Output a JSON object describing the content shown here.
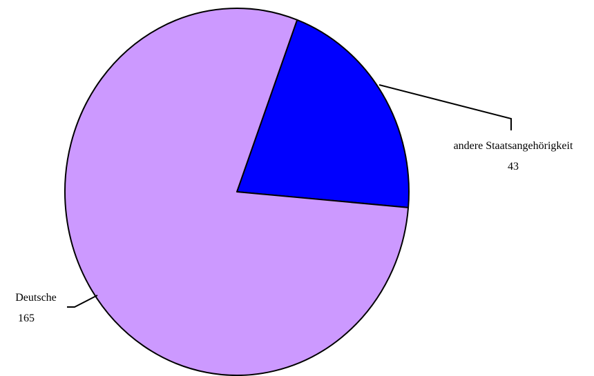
{
  "chart_data": {
    "type": "pie",
    "slices": [
      {
        "label": "andere Staatsangehörigkeit",
        "value": 43,
        "value_text": "43",
        "color": "#0000ff"
      },
      {
        "label": "Deutsche",
        "value": 165,
        "value_text": "165",
        "color": "#cc99ff"
      }
    ],
    "legend": "none"
  }
}
